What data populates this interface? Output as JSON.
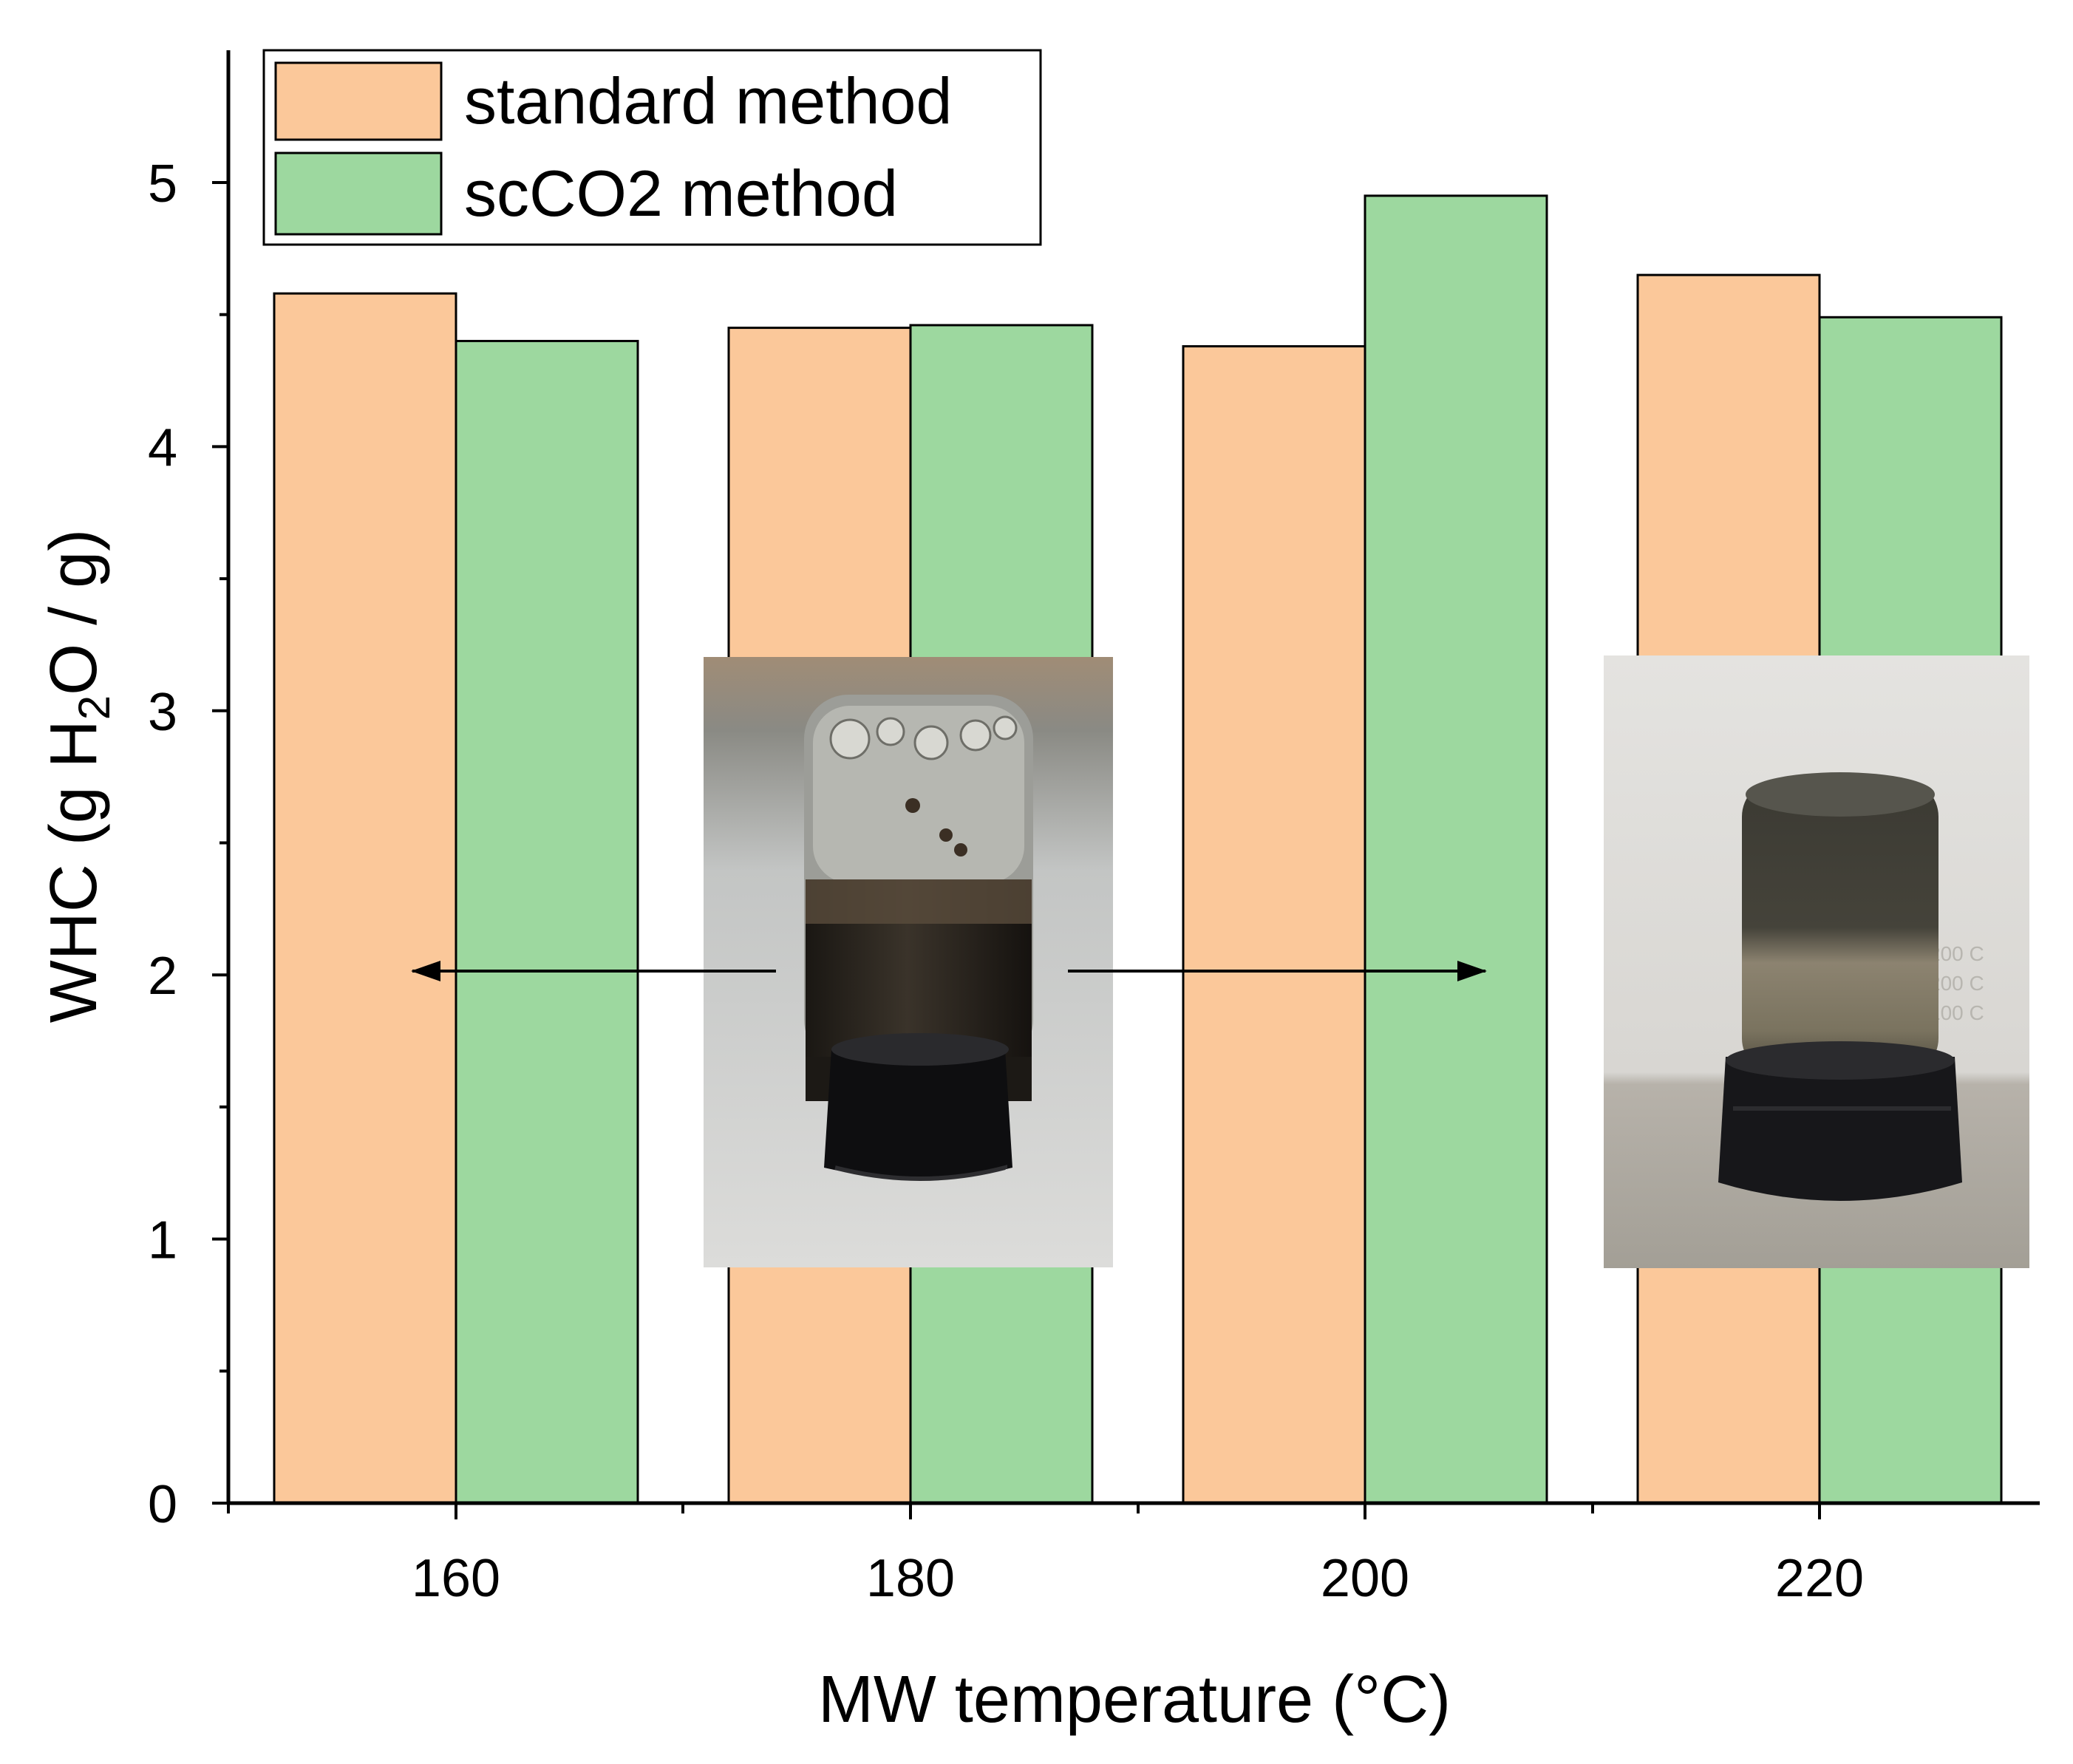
{
  "colors": {
    "standard": "#FBC89A",
    "scco2": "#9DD89F",
    "axis": "#000000"
  },
  "chart_data": {
    "type": "bar",
    "categories": [
      "160",
      "180",
      "200",
      "220"
    ],
    "series": [
      {
        "name": "standard method",
        "values": [
          4.58,
          4.45,
          4.38,
          4.65
        ]
      },
      {
        "name": "scCO2 method",
        "values": [
          4.4,
          4.46,
          4.95,
          4.49
        ]
      }
    ],
    "xlabel": "MW temperature (°C)",
    "ylabel": {
      "pre": "WHC (g H",
      "sub": "2",
      "post": "O / g)"
    },
    "ylim": [
      0,
      5.5
    ],
    "yticks": [
      "0",
      "1",
      "2",
      "3",
      "4",
      "5"
    ],
    "legend_position": "top-left",
    "grid": false,
    "annotations": [
      {
        "type": "photo",
        "name": "vial-inverted-gel-photo",
        "points_to": "160"
      },
      {
        "type": "photo",
        "name": "vial-inverted-settled-photo",
        "points_to": "200"
      }
    ]
  }
}
